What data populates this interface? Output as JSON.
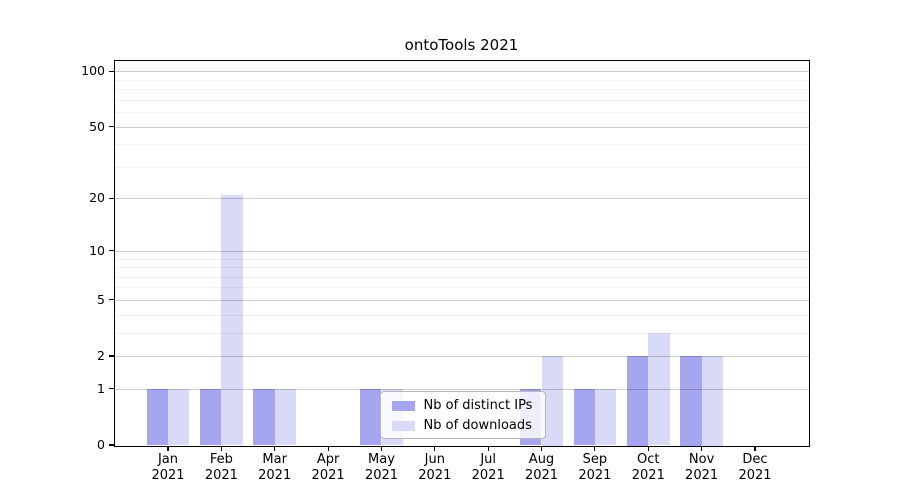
{
  "chart_data": {
    "type": "bar",
    "title": "ontoTools 2021",
    "year_label": "2021",
    "categories": [
      "Jan",
      "Feb",
      "Mar",
      "Apr",
      "May",
      "Jun",
      "Jul",
      "Aug",
      "Sep",
      "Oct",
      "Nov",
      "Dec"
    ],
    "series": [
      {
        "name": "Nb of distinct IPs",
        "color": "#a6a6f0",
        "values": [
          1,
          1,
          1,
          0,
          1,
          0,
          0,
          1,
          1,
          2,
          2,
          0
        ]
      },
      {
        "name": "Nb of downloads",
        "color": "#d9d9f8",
        "values": [
          1,
          21,
          1,
          0,
          1,
          0,
          0,
          2,
          1,
          3,
          2,
          0
        ]
      }
    ],
    "y_axis": {
      "scale": "log1p",
      "major_ticks": [
        0,
        1,
        2,
        5,
        10,
        20,
        50,
        100
      ],
      "minor_ticks": [
        3,
        4,
        6,
        7,
        8,
        9,
        30,
        40,
        60,
        70,
        80,
        90
      ],
      "ylim": [
        0,
        100
      ]
    },
    "xlabel": "",
    "ylabel": "",
    "grid": true,
    "legend_position": "lower center"
  },
  "colors": {
    "bar_distinct_ips": "#a6a6f0",
    "bar_downloads": "#d9d9f8",
    "major_grid": "rgba(0,0,0,0.20)",
    "minor_grid": "rgba(0,0,0,0.06)",
    "spine": "#000000",
    "background": "#ffffff"
  }
}
